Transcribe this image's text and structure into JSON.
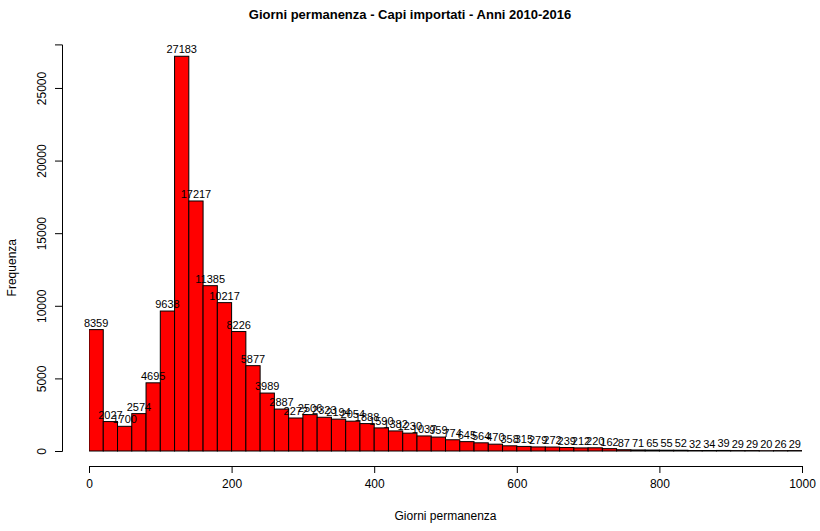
{
  "chart_data": {
    "type": "histogram",
    "title": "Giorni permanenza - Capi importati  - Anni 2010-2016",
    "x_label": "Giorni permanenza",
    "y_label": "Frequenza",
    "bins": [
      0,
      20,
      40,
      60,
      80,
      100,
      120,
      140,
      160,
      180,
      200,
      220,
      240,
      260,
      280,
      300,
      320,
      340,
      360,
      380,
      400,
      420,
      440,
      460,
      480,
      500,
      520,
      540,
      560,
      580,
      600,
      620,
      640,
      660,
      680,
      700,
      720,
      740,
      760,
      780,
      800,
      820,
      840,
      860,
      880,
      900,
      920,
      940,
      960,
      980,
      1000
    ],
    "values": [
      8359,
      2027,
      1700,
      2574,
      4695,
      9638,
      27183,
      17217,
      11385,
      10217,
      8226,
      5877,
      3989,
      2887,
      2272,
      2506,
      2323,
      2194,
      2054,
      1888,
      1590,
      1382,
      1230,
      1037,
      959,
      774,
      645,
      564,
      470,
      358,
      315,
      279,
      272,
      239,
      212,
      220,
      162,
      87,
      71,
      65,
      55,
      52,
      32,
      34,
      39,
      29,
      29,
      20,
      26,
      29
    ],
    "color": "#ff0000",
    "data_labels": true,
    "xlim": [
      0,
      1000
    ],
    "xticks": [
      0,
      200,
      400,
      600,
      800,
      1000
    ],
    "ylim": [
      0,
      28000
    ],
    "yticks": [
      0,
      5000,
      10000,
      15000,
      20000,
      25000
    ]
  }
}
